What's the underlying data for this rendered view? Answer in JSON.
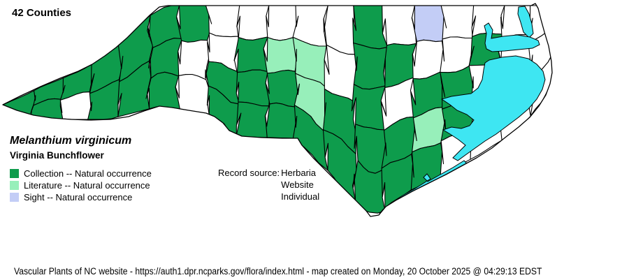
{
  "title": "42 Counties",
  "species": {
    "scientific_name": "Melanthium virginicum",
    "common_name": "Virginia Bunchflower"
  },
  "legend": {
    "items": [
      {
        "key": "D",
        "label": "Collection -- Natural occurrence",
        "color": "#0E9C4C"
      },
      {
        "key": "L",
        "label": "Literature -- Natural occurrence",
        "color": "#97EFBA"
      },
      {
        "key": "S",
        "label": "Sight -- Natural occurrence",
        "color": "#C3CDF6"
      }
    ]
  },
  "record_source": {
    "label": "Record source:",
    "values": [
      "Herbaria",
      "Website",
      "Individual"
    ]
  },
  "footer": "Vascular Plants of NC website - https://auth1.dpr.ncparks.gov/flora/index.html - map created on Monday, 20 October 2025 @ 04:29:13 EDST",
  "map": {
    "county_fill_default": "#FFFFFF",
    "border_color": "#000000",
    "water_color": "#3EE6F2",
    "strip_categories": [
      "D",
      "DD",
      "DW",
      "DD",
      "DD",
      "DDD",
      "DWW",
      "WWDD",
      "WDDD",
      "WLDD",
      "WLLD",
      "WWDD",
      "DDDDD",
      "WDWDD",
      "SWDLD",
      "WWDDW",
      "WDWWW",
      "WWWW",
      "WWW"
    ]
  }
}
